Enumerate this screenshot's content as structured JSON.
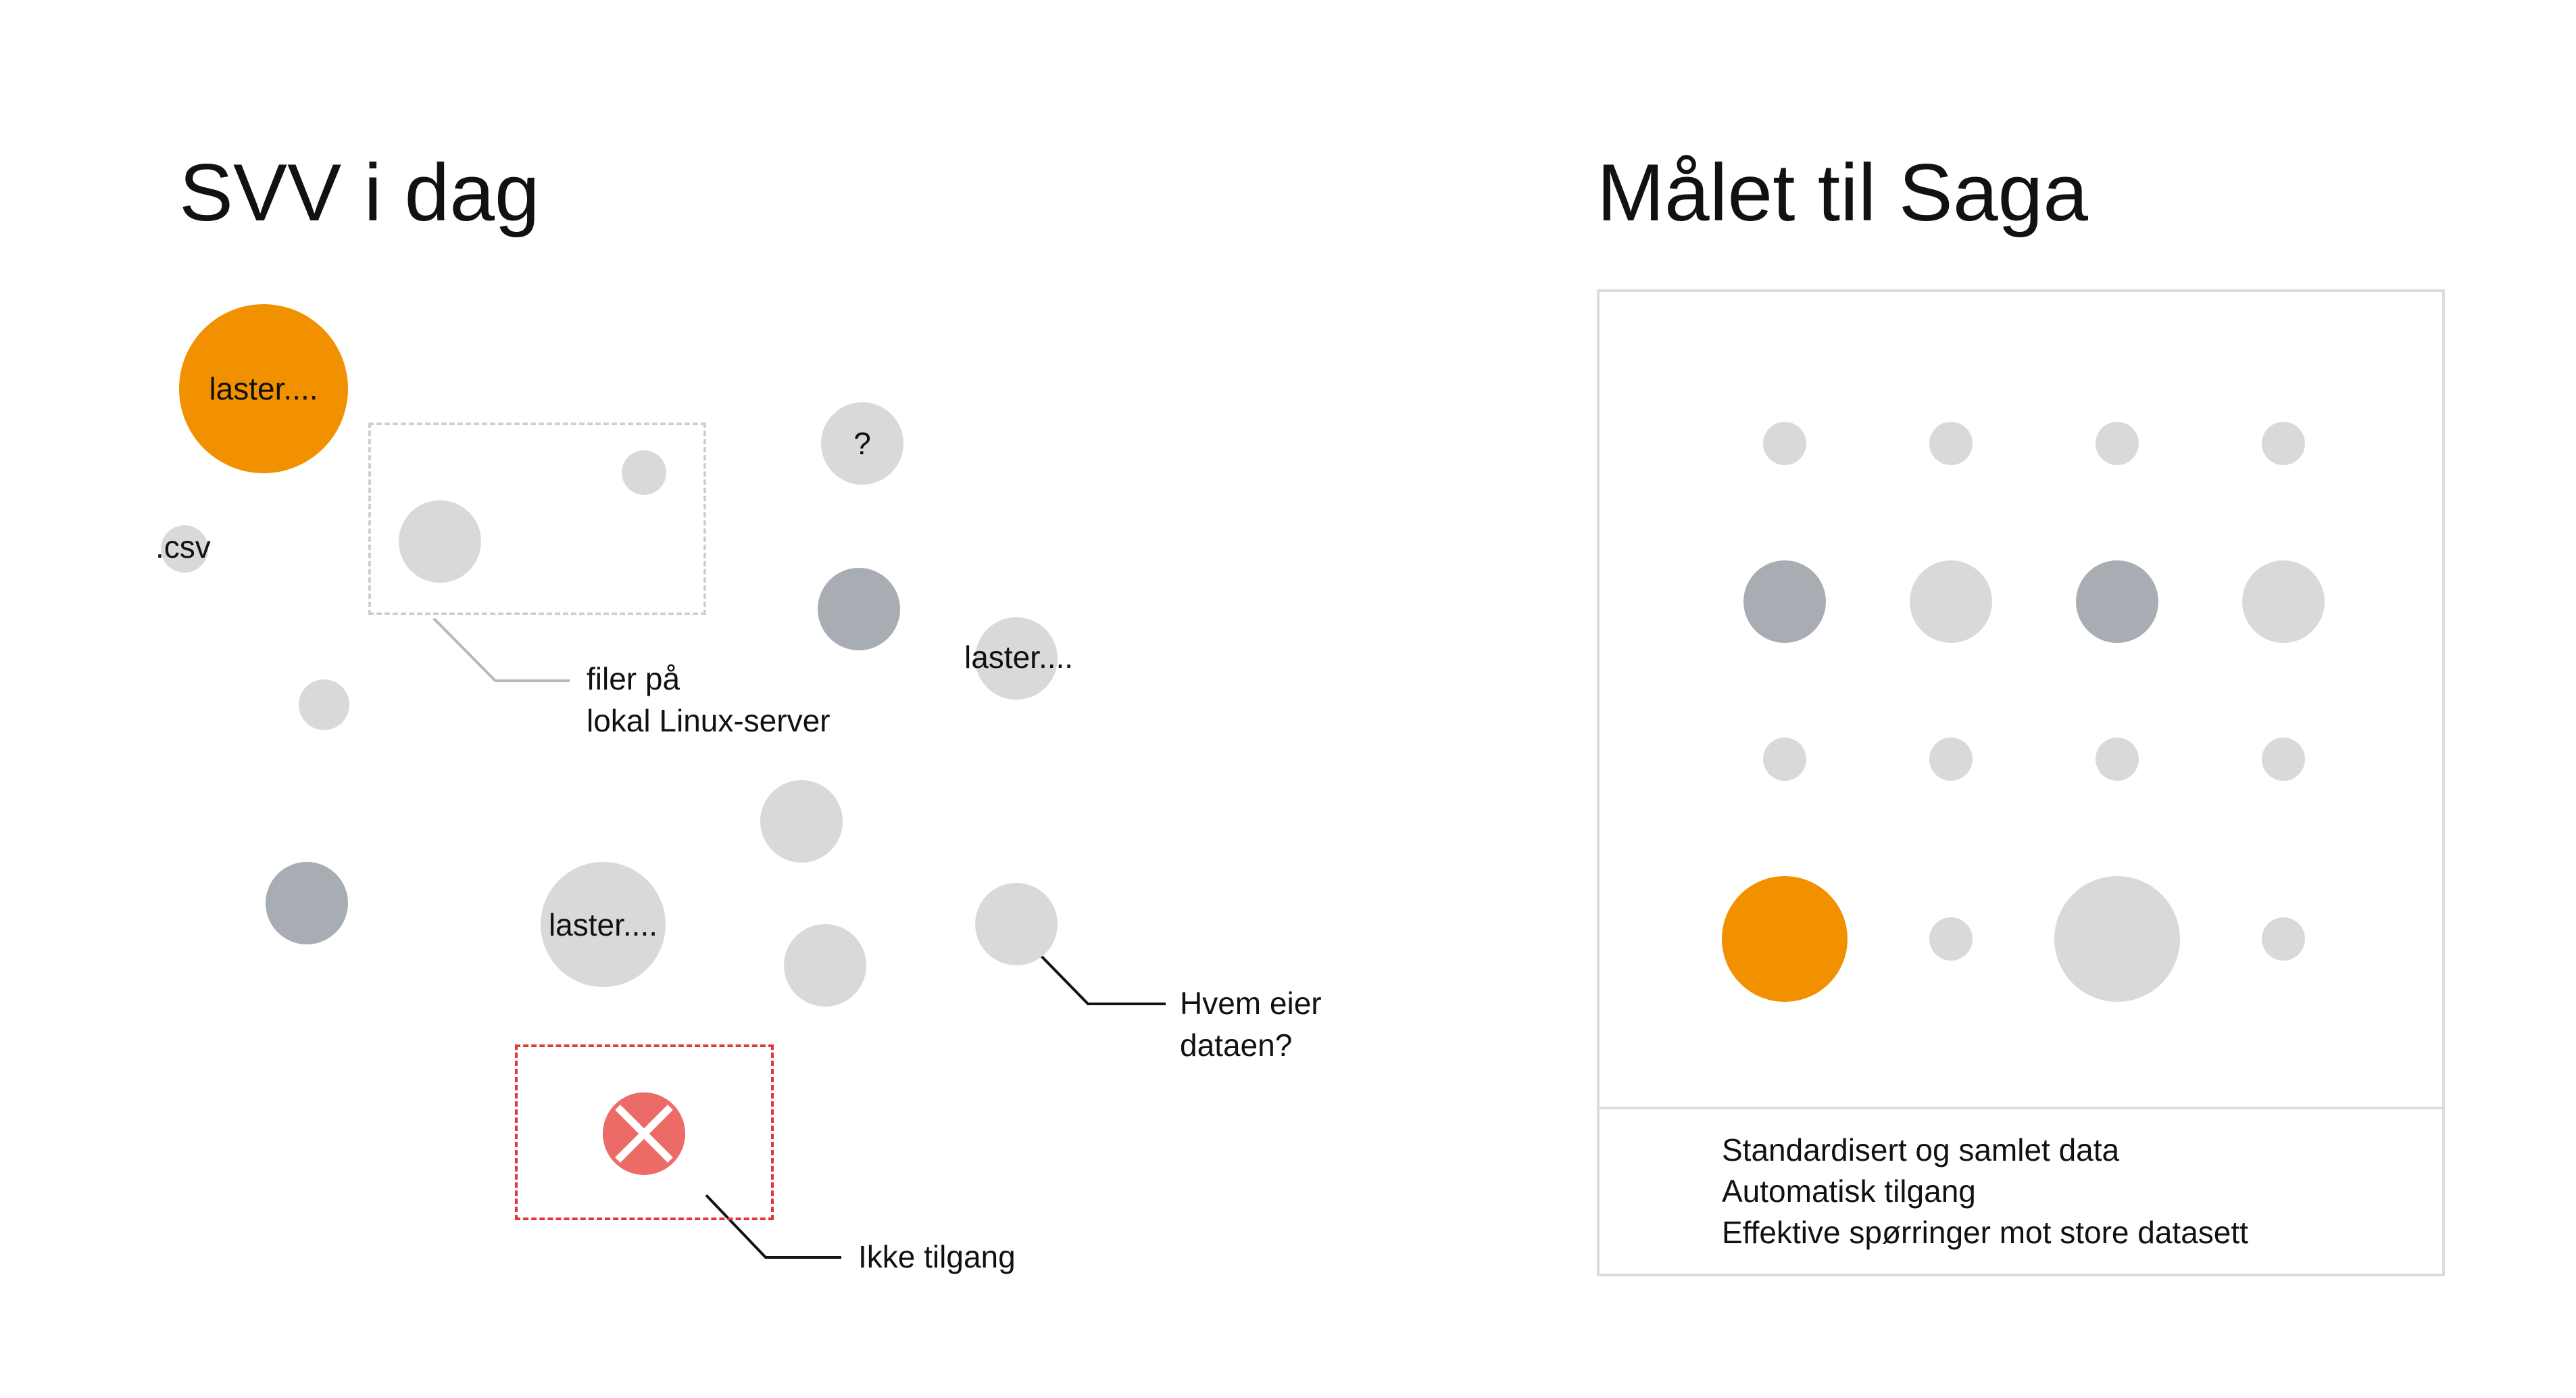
{
  "left": {
    "title": "SVV i dag",
    "loading_labels": [
      "laster....",
      "laster....",
      "laster...."
    ],
    "csv_label": ".csv",
    "question_mark": "?",
    "callouts": {
      "linux_line1": "filer på",
      "linux_line2": "lokal Linux-server",
      "owner_line1": "Hvem eier",
      "owner_line2": "dataen?",
      "no_access": "Ikke tilgang"
    }
  },
  "right": {
    "title": "Målet til Saga",
    "benefits": [
      "Standardisert og samlet data",
      "Automatisk tilgang",
      "Effektive spørringer mot store datasett"
    ]
  },
  "colors": {
    "orange": "#f29100",
    "light_gray": "#d9d9d9",
    "dark_gray": "#a8adb3",
    "red": "#ec6b67",
    "panel_border": "#dcdcdc"
  }
}
